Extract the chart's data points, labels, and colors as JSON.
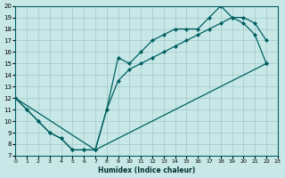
{
  "title": "",
  "xlabel": "Humidex (Indice chaleur)",
  "ylabel": "",
  "bg_color": "#c8e8e8",
  "line_color": "#006060",
  "xlim": [
    0,
    23
  ],
  "ylim": [
    7,
    20
  ],
  "xticks": [
    0,
    1,
    2,
    3,
    4,
    5,
    6,
    7,
    8,
    9,
    10,
    11,
    12,
    13,
    14,
    15,
    16,
    17,
    18,
    19,
    20,
    21,
    22,
    23
  ],
  "yticks": [
    7,
    8,
    9,
    10,
    11,
    12,
    13,
    14,
    15,
    16,
    17,
    18,
    19,
    20
  ],
  "curve1_x": [
    0,
    1,
    2,
    3,
    4,
    5,
    6,
    7,
    8,
    9,
    10,
    11,
    12,
    13,
    14,
    15,
    16,
    17,
    18,
    19,
    20,
    21,
    22
  ],
  "curve1_y": [
    12,
    11,
    10,
    9,
    8.5,
    7.5,
    7.5,
    7.5,
    11,
    15.5,
    15,
    16,
    17,
    17.5,
    18,
    18,
    18,
    19,
    20,
    19,
    18.5,
    17.5,
    15
  ],
  "curve2_x": [
    0,
    1,
    2,
    3,
    4,
    5,
    6,
    7,
    8,
    9,
    10,
    11,
    12,
    13,
    14,
    15,
    16,
    17,
    18,
    19,
    20,
    21,
    22
  ],
  "curve2_y": [
    12,
    11,
    10,
    9,
    8.5,
    7.5,
    7.5,
    7.5,
    11,
    13.5,
    14.5,
    15,
    15.5,
    16,
    16.5,
    17,
    17.5,
    18,
    18.5,
    19,
    19,
    18.5,
    17
  ],
  "curve3_x": [
    0,
    7,
    22
  ],
  "curve3_y": [
    12,
    7.5,
    15
  ]
}
